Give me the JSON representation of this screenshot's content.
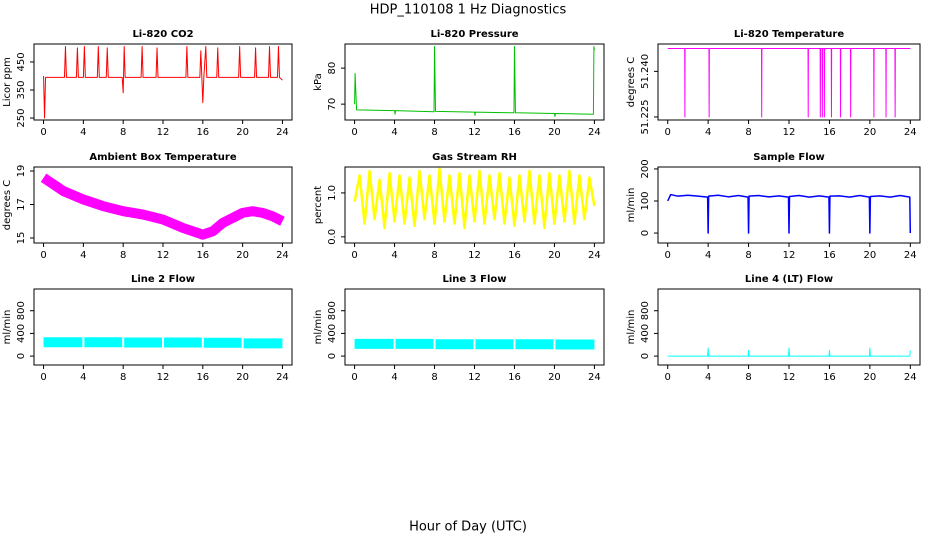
{
  "title": "HDP_110108  1 Hz Diagnostics",
  "xlabel": "Hour of Day (UTC)",
  "chart_data": [
    {
      "type": "line",
      "title": "Li-820 CO2",
      "ylabel": "Licor ppm",
      "color": "#ff0000",
      "x": [
        0,
        0.1,
        0.2,
        1,
        2.1,
        2.2,
        2.3,
        3.3,
        3.4,
        3.5,
        4.0,
        4.1,
        4.2,
        5.4,
        5.5,
        5.6,
        6.3,
        6.4,
        6.5,
        7.9,
        8.0,
        8.1,
        8.2,
        9.8,
        9.9,
        10.0,
        11.3,
        11.4,
        11.5,
        14.3,
        14.4,
        14.5,
        15.7,
        15.8,
        15.9,
        16.0,
        16.1,
        16.3,
        16.4,
        17.4,
        17.5,
        17.6,
        19.6,
        19.7,
        19.8,
        21.2,
        21.3,
        21.4,
        22.6,
        22.7,
        22.8,
        23.5,
        23.6,
        23.7,
        24
      ],
      "values": [
        400,
        250,
        395,
        395,
        395,
        505,
        395,
        395,
        500,
        395,
        395,
        505,
        395,
        395,
        505,
        395,
        395,
        500,
        395,
        395,
        340,
        505,
        395,
        395,
        505,
        395,
        395,
        500,
        395,
        395,
        505,
        395,
        395,
        490,
        395,
        305,
        395,
        505,
        395,
        395,
        500,
        395,
        395,
        505,
        395,
        395,
        500,
        395,
        395,
        505,
        395,
        395,
        505,
        395,
        385
      ],
      "xlim": [
        -0.96,
        24.96
      ],
      "xticks": [
        0,
        4,
        8,
        12,
        16,
        20,
        24
      ],
      "ylim": [
        243,
        514
      ],
      "yticks": [
        250,
        350,
        450
      ]
    },
    {
      "type": "line",
      "title": "Li-820 Pressure",
      "ylabel": "kPa",
      "color": "#00c000",
      "x": [
        0,
        0.05,
        0.2,
        4,
        4.05,
        4.1,
        7.95,
        8.0,
        8.1,
        12,
        12.05,
        12.1,
        15.95,
        16.0,
        16.1,
        20,
        20.05,
        20.1,
        23.9,
        23.95,
        24
      ],
      "values": [
        70,
        78.5,
        68.4,
        68.2,
        67.2,
        68.2,
        67.9,
        86,
        68,
        67.8,
        66.9,
        67.8,
        67.6,
        86,
        67.6,
        67.4,
        66.6,
        67.4,
        67.2,
        86,
        85
      ],
      "xlim": [
        -0.96,
        24.96
      ],
      "xticks": [
        0,
        4,
        8,
        12,
        16,
        20,
        24
      ],
      "ylim": [
        65.6,
        86.7
      ],
      "yticks": [
        70,
        80
      ]
    },
    {
      "type": "line",
      "title": "Li-820 Temperature",
      "ylabel": "degrees C",
      "color": "#ff00ff",
      "x": [
        0,
        1.68,
        1.7,
        1.72,
        4.08,
        4.1,
        4.12,
        9.28,
        9.3,
        9.32,
        13.88,
        13.9,
        13.92,
        15.08,
        15.1,
        15.12,
        15.28,
        15.3,
        15.32,
        15.48,
        15.5,
        15.52,
        16.18,
        16.2,
        16.22,
        17.08,
        17.1,
        17.12,
        18.08,
        18.1,
        18.12,
        20.38,
        20.4,
        20.42,
        21.58,
        21.6,
        21.62,
        22.48,
        22.5,
        22.52,
        24
      ],
      "values": [
        51.2475,
        51.2475,
        51.225,
        51.2475,
        51.2475,
        51.225,
        51.2475,
        51.2475,
        51.225,
        51.2475,
        51.2475,
        51.225,
        51.2475,
        51.2475,
        51.225,
        51.2475,
        51.2475,
        51.225,
        51.2475,
        51.2475,
        51.225,
        51.2475,
        51.2475,
        51.225,
        51.2475,
        51.2475,
        51.225,
        51.2475,
        51.2475,
        51.225,
        51.2475,
        51.2475,
        51.225,
        51.2475,
        51.2475,
        51.225,
        51.2475,
        51.2475,
        51.225,
        51.2475,
        51.2475
      ],
      "xlim": [
        -0.96,
        24.96
      ],
      "xticks": [
        0,
        4,
        8,
        12,
        16,
        20,
        24
      ],
      "ylim": [
        51.224,
        51.249
      ],
      "yticks": [
        51.225,
        {
          "value": 51.24,
          "label": "51.240"
        }
      ]
    },
    {
      "type": "line",
      "title": "Ambient Box Temperature",
      "ylabel": "degrees C",
      "color": "#ff00ff",
      "x": [
        0,
        1,
        2,
        4,
        6,
        8,
        10,
        12,
        14,
        16,
        17,
        18,
        20,
        21,
        22,
        23,
        24
      ],
      "values": [
        18.6,
        18.2,
        17.8,
        17.3,
        16.9,
        16.6,
        16.4,
        16.1,
        15.6,
        15.2,
        15.4,
        15.9,
        16.5,
        16.6,
        16.5,
        16.3,
        16.0
      ],
      "xlim": [
        -0.96,
        24.96
      ],
      "xticks": [
        0,
        4,
        8,
        12,
        16,
        20,
        24
      ],
      "ylim": [
        14.7,
        19.24
      ],
      "yticks": [
        15,
        17,
        19
      ]
    },
    {
      "type": "line",
      "title": "Gas Stream RH",
      "ylabel": "percent",
      "color": "#ffff00",
      "x": [
        0,
        0.5,
        1,
        1.5,
        2,
        2.5,
        3,
        3.5,
        4,
        4.5,
        5,
        5.5,
        6,
        6.5,
        7,
        7.5,
        8,
        8.5,
        9,
        9.5,
        10,
        10.5,
        11,
        11.5,
        12,
        12.5,
        13,
        13.5,
        14,
        14.5,
        15,
        15.5,
        16,
        16.5,
        17,
        17.5,
        18,
        18.5,
        19,
        19.5,
        20,
        20.5,
        21,
        21.5,
        22,
        22.5,
        23,
        23.5,
        24
      ],
      "values": [
        0.8,
        1.4,
        0.3,
        1.5,
        0.4,
        1.3,
        0.2,
        1.45,
        0.35,
        1.4,
        0.3,
        1.35,
        0.25,
        1.5,
        0.4,
        1.4,
        0.3,
        1.55,
        0.35,
        1.4,
        0.3,
        1.45,
        0.2,
        1.4,
        0.35,
        1.5,
        0.3,
        1.4,
        0.4,
        1.45,
        0.3,
        1.35,
        0.25,
        1.4,
        0.35,
        1.5,
        0.3,
        1.4,
        0.2,
        1.45,
        0.3,
        1.4,
        0.35,
        1.5,
        0.3,
        1.4,
        0.4,
        1.35,
        0.7
      ],
      "xlim": [
        -0.96,
        24.96
      ],
      "xticks": [
        0,
        4,
        8,
        12,
        16,
        20,
        24
      ],
      "ylim": [
        -0.14,
        1.59
      ],
      "yticks": [
        {
          "value": 0,
          "label": "0.0"
        },
        {
          "value": 1,
          "label": "1.0"
        }
      ]
    },
    {
      "type": "line",
      "title": "Sample Flow",
      "ylabel": "ml/min",
      "color": "#0000ff",
      "x": [
        0,
        0.3,
        1,
        2,
        3,
        3.95,
        4.0,
        4.05,
        5,
        6,
        7,
        7.95,
        8.0,
        8.05,
        9,
        10,
        11,
        11.95,
        12.0,
        12.05,
        13,
        14,
        15,
        15.95,
        16.0,
        16.05,
        17,
        18,
        19,
        19.95,
        20.0,
        20.05,
        21,
        22,
        23,
        23.95,
        24
      ],
      "values": [
        100,
        120,
        115,
        118,
        115,
        112,
        0,
        115,
        118,
        113,
        117,
        112,
        0,
        115,
        117,
        113,
        116,
        112,
        0,
        114,
        117,
        112,
        116,
        112,
        0,
        115,
        116,
        112,
        117,
        112,
        0,
        114,
        116,
        112,
        117,
        112,
        0
      ],
      "xlim": [
        -0.96,
        24.96
      ],
      "xticks": [
        0,
        4,
        8,
        12,
        16,
        20,
        24
      ],
      "ylim": [
        -31,
        206
      ],
      "yticks": [
        0,
        100,
        200
      ]
    },
    {
      "type": "line",
      "title": "Line 2 Flow",
      "ylabel": "ml/min",
      "color": "#00ffff",
      "x": [
        0,
        3.9,
        4.0,
        4.1,
        7.9,
        8.0,
        8.1,
        11.9,
        12.0,
        12.1,
        15.9,
        16.0,
        16.1,
        19.9,
        20.0,
        20.1,
        24
      ],
      "values": [
        245,
        245,
        null,
        245,
        245,
        null,
        240,
        240,
        null,
        240,
        240,
        null,
        235,
        235,
        null,
        225,
        225
      ],
      "xlim": [
        -0.96,
        24.96
      ],
      "xticks": [
        0,
        4,
        8,
        12,
        16,
        20,
        24
      ],
      "ylim": [
        -157,
        1183
      ],
      "yticks": [
        0,
        400,
        800
      ]
    },
    {
      "type": "line",
      "title": "Line 3 Flow",
      "ylabel": "ml/min",
      "color": "#00ffff",
      "x": [
        0,
        3.9,
        4.0,
        4.1,
        7.9,
        8.0,
        8.1,
        11.9,
        12.0,
        12.1,
        15.9,
        16.0,
        16.1,
        19.9,
        20.0,
        20.1,
        24
      ],
      "values": [
        215,
        215,
        null,
        215,
        215,
        null,
        210,
        210,
        null,
        210,
        210,
        null,
        210,
        210,
        null,
        205,
        205
      ],
      "xlim": [
        -0.96,
        24.96
      ],
      "xticks": [
        0,
        4,
        8,
        12,
        16,
        20,
        24
      ],
      "ylim": [
        -157,
        1183
      ],
      "yticks": [
        0,
        400,
        800
      ]
    },
    {
      "type": "line",
      "title": "Line 4 (LT) Flow",
      "ylabel": "ml/min",
      "color": "#00ffff",
      "x": [
        0,
        3.95,
        4.0,
        4.05,
        7.95,
        8.0,
        8.05,
        11.95,
        12.0,
        12.05,
        15.95,
        16.0,
        16.05,
        19.95,
        20.0,
        20.05,
        23.95,
        24.0
      ],
      "values": [
        0,
        0,
        140,
        0,
        0,
        100,
        0,
        0,
        140,
        0,
        0,
        100,
        0,
        0,
        140,
        0,
        0,
        100
      ],
      "xlim": [
        -0.96,
        24.96
      ],
      "xticks": [
        0,
        4,
        8,
        12,
        16,
        20,
        24
      ],
      "ylim": [
        -157,
        1183
      ],
      "yticks": [
        0,
        400,
        800
      ]
    }
  ]
}
